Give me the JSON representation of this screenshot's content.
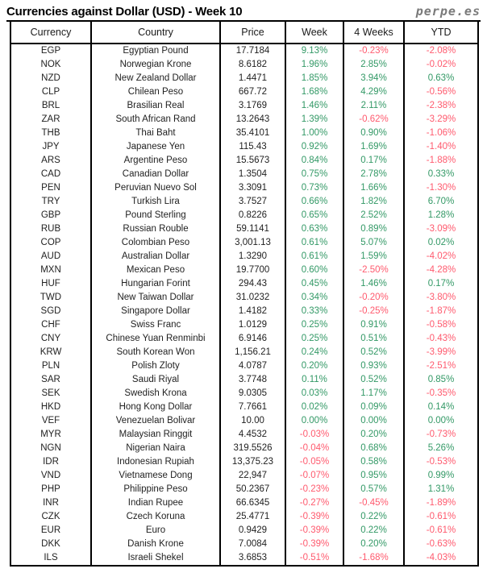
{
  "header": {
    "title": "Currencies against Dollar (USD) - Week 10",
    "brand": "perpe.es"
  },
  "colors": {
    "positive": "#339966",
    "negative": "#ff5a6e"
  },
  "chart_data": {
    "type": "table",
    "title": "Currencies against Dollar (USD) - Week 10",
    "columns": [
      "Currency",
      "Country",
      "Price",
      "Week",
      "4 Weeks",
      "YTD"
    ],
    "rows": [
      [
        "EGP",
        "Egyptian Pound",
        "17.7184",
        "9.13%",
        "-0.23%",
        "-2.08%"
      ],
      [
        "NOK",
        "Norwegian Krone",
        "8.6182",
        "1.96%",
        "2.85%",
        "-0.02%"
      ],
      [
        "NZD",
        "New Zealand Dollar",
        "1.4471",
        "1.85%",
        "3.94%",
        "0.63%"
      ],
      [
        "CLP",
        "Chilean Peso",
        "667.72",
        "1.68%",
        "4.29%",
        "-0.56%"
      ],
      [
        "BRL",
        "Brasilian Real",
        "3.1769",
        "1.46%",
        "2.11%",
        "-2.38%"
      ],
      [
        "ZAR",
        "South African Rand",
        "13.2643",
        "1.39%",
        "-0.62%",
        "-3.29%"
      ],
      [
        "THB",
        "Thai Baht",
        "35.4101",
        "1.00%",
        "0.90%",
        "-1.06%"
      ],
      [
        "JPY",
        "Japanese Yen",
        "115.43",
        "0.92%",
        "1.69%",
        "-1.40%"
      ],
      [
        "ARS",
        "Argentine Peso",
        "15.5673",
        "0.84%",
        "0.17%",
        "-1.88%"
      ],
      [
        "CAD",
        "Canadian Dollar",
        "1.3504",
        "0.75%",
        "2.78%",
        "0.33%"
      ],
      [
        "PEN",
        "Peruvian Nuevo Sol",
        "3.3091",
        "0.73%",
        "1.66%",
        "-1.30%"
      ],
      [
        "TRY",
        "Turkish Lira",
        "3.7527",
        "0.66%",
        "1.82%",
        "6.70%"
      ],
      [
        "GBP",
        "Pound Sterling",
        "0.8226",
        "0.65%",
        "2.52%",
        "1.28%"
      ],
      [
        "RUB",
        "Russian Rouble",
        "59.1141",
        "0.63%",
        "0.89%",
        "-3.09%"
      ],
      [
        "COP",
        "Colombian Peso",
        "3,001.13",
        "0.61%",
        "5.07%",
        "0.02%"
      ],
      [
        "AUD",
        "Australian Dollar",
        "1.3290",
        "0.61%",
        "1.59%",
        "-4.02%"
      ],
      [
        "MXN",
        "Mexican Peso",
        "19.7700",
        "0.60%",
        "-2.50%",
        "-4.28%"
      ],
      [
        "HUF",
        "Hungarian Forint",
        "294.43",
        "0.45%",
        "1.46%",
        "0.17%"
      ],
      [
        "TWD",
        "New Taiwan Dollar",
        "31.0232",
        "0.34%",
        "-0.20%",
        "-3.80%"
      ],
      [
        "SGD",
        "Singapore Dollar",
        "1.4182",
        "0.33%",
        "-0.25%",
        "-1.87%"
      ],
      [
        "CHF",
        "Swiss Franc",
        "1.0129",
        "0.25%",
        "0.91%",
        "-0.58%"
      ],
      [
        "CNY",
        "Chinese Yuan Renminbi",
        "6.9146",
        "0.25%",
        "0.51%",
        "-0.43%"
      ],
      [
        "KRW",
        "South Korean Won",
        "1,156.21",
        "0.24%",
        "0.52%",
        "-3.99%"
      ],
      [
        "PLN",
        "Polish Zloty",
        "4.0787",
        "0.20%",
        "0.93%",
        "-2.51%"
      ],
      [
        "SAR",
        "Saudi Riyal",
        "3.7748",
        "0.11%",
        "0.52%",
        "0.85%"
      ],
      [
        "SEK",
        "Swedish Krona",
        "9.0305",
        "0.03%",
        "1.17%",
        "-0.35%"
      ],
      [
        "HKD",
        "Hong Kong Dollar",
        "7.7661",
        "0.02%",
        "0.09%",
        "0.14%"
      ],
      [
        "VEF",
        "Venezuelan Bolivar",
        "10.00",
        "0.00%",
        "0.00%",
        "0.00%"
      ],
      [
        "MYR",
        "Malaysian Ringgit",
        "4.4532",
        "-0.03%",
        "0.20%",
        "-0.73%"
      ],
      [
        "NGN",
        "Nigerian Naira",
        "319.5526",
        "-0.04%",
        "0.68%",
        "5.26%"
      ],
      [
        "IDR",
        "Indonesian Rupiah",
        "13,375.23",
        "-0.05%",
        "0.58%",
        "-0.53%"
      ],
      [
        "VND",
        "Vietnamese Dong",
        "22,947",
        "-0.07%",
        "0.95%",
        "0.99%"
      ],
      [
        "PHP",
        "Philippine Peso",
        "50.2367",
        "-0.23%",
        "0.57%",
        "1.31%"
      ],
      [
        "INR",
        "Indian Rupee",
        "66.6345",
        "-0.27%",
        "-0.45%",
        "-1.89%"
      ],
      [
        "CZK",
        "Czech Koruna",
        "25.4771",
        "-0.39%",
        "0.22%",
        "-0.61%"
      ],
      [
        "EUR",
        "Euro",
        "0.9429",
        "-0.39%",
        "0.22%",
        "-0.61%"
      ],
      [
        "DKK",
        "Danish Krone",
        "7.0084",
        "-0.39%",
        "0.20%",
        "-0.63%"
      ],
      [
        "ILS",
        "Israeli Shekel",
        "3.6853",
        "-0.51%",
        "-1.68%",
        "-4.03%"
      ]
    ]
  }
}
